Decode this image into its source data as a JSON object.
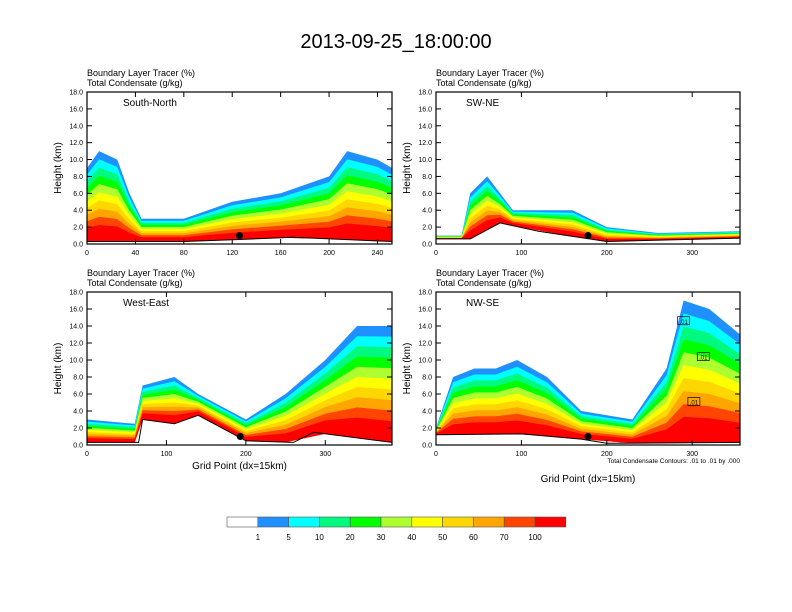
{
  "title": "2013-09-25_18:00:00",
  "colors": [
    "#ffffff",
    "#1e90ff",
    "#00ffff",
    "#00fa7f",
    "#00ff00",
    "#adff2f",
    "#ffff00",
    "#ffd700",
    "#ffa500",
    "#ff4500",
    "#ff0000"
  ],
  "colorbar": {
    "labels": [
      "1",
      "5",
      "10",
      "20",
      "30",
      "40",
      "50",
      "60",
      "70",
      "100"
    ]
  },
  "chart_data": [
    {
      "type": "heatmap",
      "panel": "South-North",
      "subtitle1": "Boundary Layer Tracer   (%)",
      "subtitle2": "Total Condensate   (g/kg)",
      "ylabel": "Height (km)",
      "xlabel": "",
      "ylim": [
        0,
        18
      ],
      "xlim": [
        0,
        252
      ],
      "yticks": [
        "0.0",
        "2.0",
        "4.0",
        "6.0",
        "8.0",
        "10.0",
        "12.0",
        "14.0",
        "16.0",
        "18.0"
      ],
      "xticks": [
        0,
        40,
        80,
        120,
        160,
        200,
        240
      ],
      "marker_x": 126,
      "marker_y": 1.0
    },
    {
      "type": "heatmap",
      "panel": "SW-NE",
      "subtitle1": "Boundary Layer Tracer   (%)",
      "subtitle2": "Total Condensate   (g/kg)",
      "ylabel": "Height (km)",
      "xlabel": "",
      "ylim": [
        0,
        18
      ],
      "xlim": [
        0,
        356
      ],
      "yticks": [
        "0.0",
        "2.0",
        "4.0",
        "6.0",
        "8.0",
        "10.0",
        "12.0",
        "14.0",
        "16.0",
        "18.0"
      ],
      "xticks": [
        0,
        100,
        200,
        300
      ],
      "marker_x": 178,
      "marker_y": 1.0
    },
    {
      "type": "heatmap",
      "panel": "West-East",
      "subtitle1": "Boundary Layer Tracer   (%)",
      "subtitle2": "Total Condensate   (g/kg)",
      "ylabel": "Height (km)",
      "xlabel": "Grid Point (dx=15km)",
      "ylim": [
        0,
        18
      ],
      "xlim": [
        0,
        384
      ],
      "yticks": [
        "0.0",
        "2.0",
        "4.0",
        "6.0",
        "8.0",
        "10.0",
        "12.0",
        "14.0",
        "16.0",
        "18.0"
      ],
      "xticks": [
        0,
        100,
        200,
        300
      ],
      "marker_x": 193,
      "marker_y": 1.0
    },
    {
      "type": "heatmap",
      "panel": "NW-SE",
      "subtitle1": "Boundary Layer Tracer   (%)",
      "subtitle2": "Total Condensate   (g/kg)",
      "ylabel": "Height (km)",
      "xlabel": "Grid Point (dx=15km)",
      "ylim": [
        0,
        18
      ],
      "xlim": [
        0,
        356
      ],
      "yticks": [
        "0.0",
        "2.0",
        "4.0",
        "6.0",
        "8.0",
        "10.0",
        "12.0",
        "14.0",
        "16.0",
        "18.0"
      ],
      "xticks": [
        0,
        100,
        200,
        300
      ],
      "marker_x": 178,
      "marker_y": 1.0,
      "contour_labels": [
        ".01",
        ".01",
        ".01"
      ],
      "note": "Total Condensate Contours: .01 to .01 by .000"
    }
  ]
}
